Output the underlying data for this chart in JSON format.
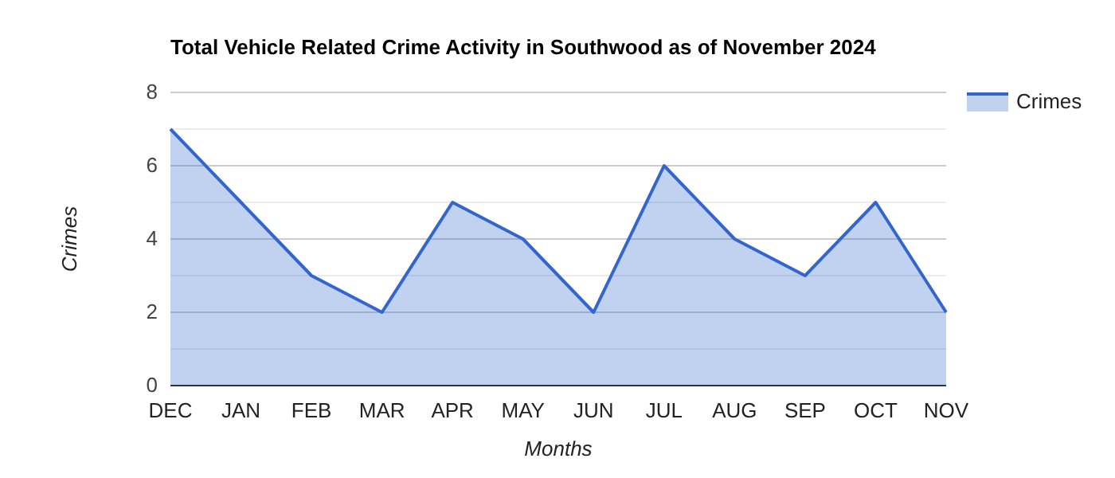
{
  "chart_data": {
    "type": "area",
    "title": "Total Vehicle Related Crime Activity in Southwood as of November 2024",
    "xlabel": "Months",
    "ylabel": "Crimes",
    "categories": [
      "DEC",
      "JAN",
      "FEB",
      "MAR",
      "APR",
      "MAY",
      "JUN",
      "JUL",
      "AUG",
      "SEP",
      "OCT",
      "NOV"
    ],
    "series": [
      {
        "name": "Crimes",
        "color": "#3366cc",
        "values": [
          7,
          5,
          3,
          2,
          5,
          4,
          2,
          6,
          4,
          3,
          5,
          2
        ]
      }
    ],
    "ylim": [
      0,
      8
    ],
    "yticks": [
      0,
      {
        "value": 1,
        "label": null
      },
      2,
      {
        "value": 3,
        "label": null
      },
      4,
      {
        "value": 5,
        "label": null
      },
      6,
      {
        "value": 7,
        "label": null
      },
      8
    ],
    "grid": "y",
    "legend": "top right"
  }
}
